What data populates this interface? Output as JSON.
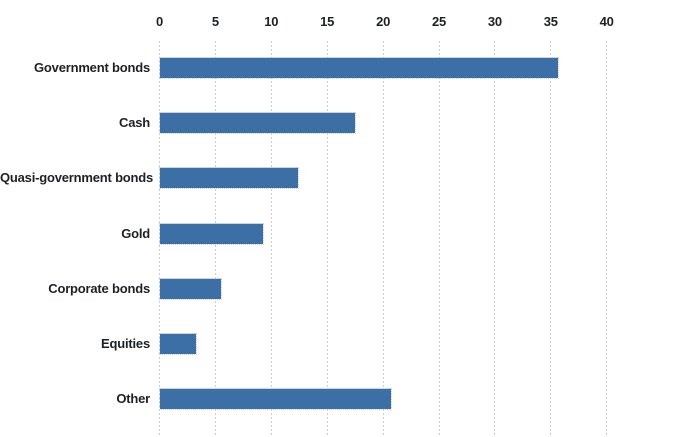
{
  "chart_data": {
    "type": "bar",
    "orientation": "horizontal",
    "title": "",
    "xlabel": "",
    "ylabel": "",
    "categories": [
      "Government bonds",
      "Cash",
      "Quasi-government bonds",
      "Gold",
      "Corporate bonds",
      "Equities",
      "Other"
    ],
    "values": [
      35.6,
      17.4,
      12.3,
      9.2,
      5.5,
      3.2,
      20.7
    ],
    "xlim": [
      0,
      40
    ],
    "xticks": [
      0,
      5,
      10,
      15,
      20,
      25,
      30,
      35,
      40
    ],
    "grid": true,
    "legend": false,
    "axis_position": "top",
    "colors": {
      "bar": "#3b6fa5",
      "gridline": "#c7ced4",
      "tick_text": "#1d2126",
      "category_text": "#1d2126",
      "background": "#ffffff"
    }
  }
}
